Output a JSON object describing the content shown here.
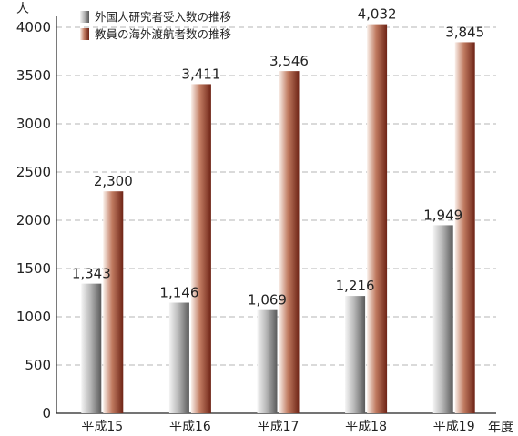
{
  "chart_data": {
    "type": "bar",
    "title": "",
    "ylabel": "人",
    "xlabel": "年度",
    "ylim": [
      0,
      4000
    ],
    "yticks": [
      0,
      500,
      1000,
      1500,
      2000,
      2500,
      3000,
      3500,
      4000
    ],
    "grid": true,
    "legend": "top-left",
    "categories": [
      "平成15",
      "平成16",
      "平成17",
      "平成18",
      "平成19"
    ],
    "series": [
      {
        "name": "外国人研究者受入数の推移",
        "values": [
          1343,
          1146,
          1069,
          1216,
          1949
        ],
        "labels": [
          "1,343",
          "1,146",
          "1,069",
          "1,216",
          "1,949"
        ],
        "color": "#9a9a9a"
      },
      {
        "name": "教員の海外渡航者数の推移",
        "values": [
          2300,
          3411,
          3546,
          4032,
          3845
        ],
        "labels": [
          "2,300",
          "3,411",
          "3,546",
          "4,032",
          "3,845"
        ],
        "color": "#8b3a2a"
      }
    ]
  }
}
